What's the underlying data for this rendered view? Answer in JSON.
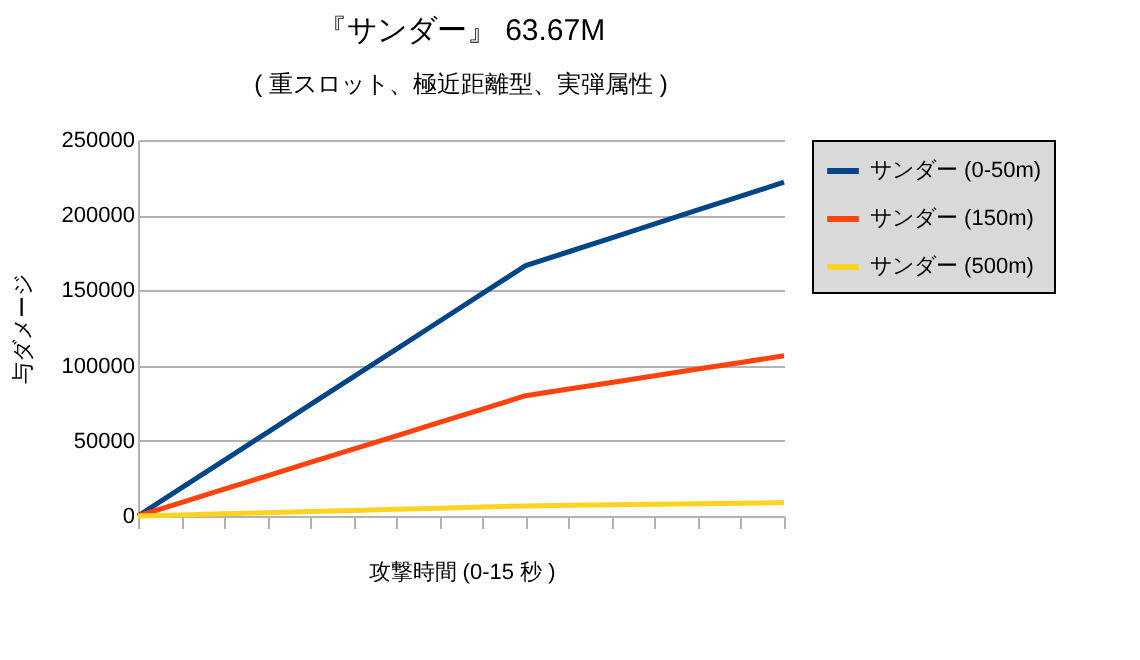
{
  "chart_data": {
    "type": "line",
    "title": "『サンダー』 63.67M",
    "subtitle": "( 重スロット、極近距離型、実弾属性 )",
    "xlabel": "攻撃時間 (0-15 秒 )",
    "ylabel": "与ダメージ",
    "categories": [
      null,
      null,
      null,
      null,
      null,
      null,
      null,
      null,
      null,
      null,
      null,
      null,
      null,
      null,
      null,
      null
    ],
    "series": [
      {
        "name": "サンダー (0-50m)",
        "color": "#004586",
        "values": [
          0,
          18500,
          37000,
          55500,
          74000,
          92500,
          111000,
          129500,
          148000,
          166500,
          175700,
          185000,
          194200,
          203500,
          212700,
          222000
        ]
      },
      {
        "name": "サンダー (150m)",
        "color": "#ff420e",
        "values": [
          0,
          8900,
          17800,
          26700,
          35600,
          44400,
          53300,
          62200,
          71100,
          80000,
          84400,
          88800,
          93300,
          97700,
          102100,
          106500
        ]
      },
      {
        "name": "サンダー (500m)",
        "color": "#ffd320",
        "values": [
          0,
          700,
          1500,
          2200,
          3000,
          3700,
          4500,
          5200,
          6000,
          6700,
          7100,
          7400,
          7800,
          8200,
          8500,
          8900
        ]
      }
    ],
    "ylim": [
      0,
      250000
    ],
    "yticks": [
      0,
      50000,
      100000,
      150000,
      200000,
      250000
    ],
    "grid": "y",
    "legend": "right",
    "marker": "none",
    "line_style": "solid"
  }
}
